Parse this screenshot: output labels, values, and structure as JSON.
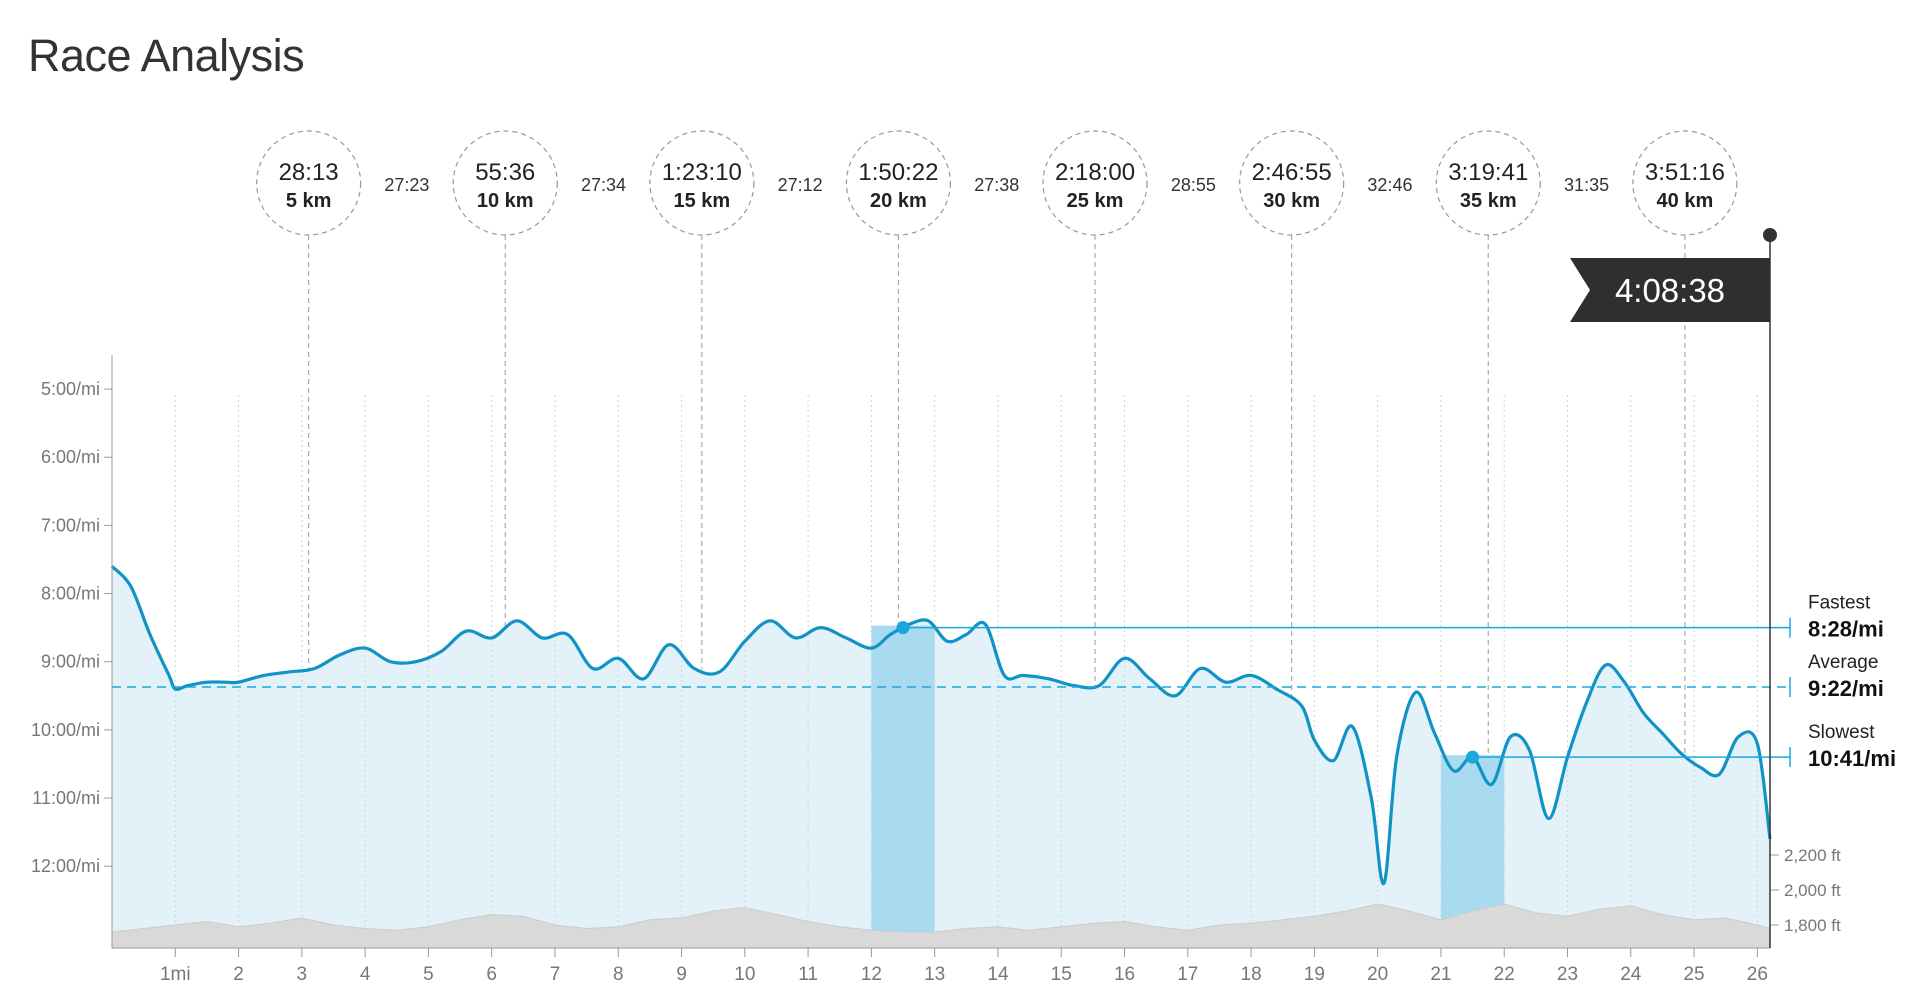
{
  "page": {
    "title": "Race Analysis"
  },
  "chart_data": {
    "type": "line",
    "x_unit": "mi",
    "x_range": [
      0,
      26.2
    ],
    "x_ticks": [
      "1mi",
      "2",
      "3",
      "4",
      "5",
      "6",
      "7",
      "8",
      "9",
      "10",
      "11",
      "12",
      "13",
      "14",
      "15",
      "16",
      "17",
      "18",
      "19",
      "20",
      "21",
      "22",
      "23",
      "24",
      "25",
      "26"
    ],
    "y_range_min_per_mi": [
      4.5,
      13.2
    ],
    "y_ticks": [
      {
        "label": "5:00/mi",
        "value": 5
      },
      {
        "label": "6:00/mi",
        "value": 6
      },
      {
        "label": "7:00/mi",
        "value": 7
      },
      {
        "label": "8:00/mi",
        "value": 8
      },
      {
        "label": "9:00/mi",
        "value": 9
      },
      {
        "label": "10:00/mi",
        "value": 10
      },
      {
        "label": "11:00/mi",
        "value": 11
      },
      {
        "label": "12:00/mi",
        "value": 12
      }
    ],
    "pace_series": {
      "x": [
        0,
        0.3,
        0.6,
        0.9,
        1.0,
        1.2,
        1.5,
        1.8,
        2.0,
        2.4,
        2.8,
        3.2,
        3.6,
        4.0,
        4.4,
        4.8,
        5.2,
        5.6,
        6.0,
        6.4,
        6.8,
        7.2,
        7.6,
        8.0,
        8.4,
        8.8,
        9.2,
        9.6,
        10.0,
        10.4,
        10.8,
        11.2,
        11.6,
        12.0,
        12.3,
        12.6,
        12.9,
        13.2,
        13.5,
        13.8,
        14.1,
        14.4,
        14.8,
        15.2,
        15.6,
        16.0,
        16.4,
        16.8,
        17.2,
        17.6,
        18.0,
        18.4,
        18.8,
        19.0,
        19.3,
        19.6,
        19.9,
        20.1,
        20.3,
        20.6,
        20.9,
        21.2,
        21.5,
        21.8,
        22.1,
        22.4,
        22.7,
        23.0,
        23.3,
        23.6,
        23.9,
        24.2,
        24.5,
        24.8,
        25.1,
        25.4,
        25.7,
        26.0,
        26.2
      ],
      "y": [
        7.6,
        7.9,
        8.6,
        9.2,
        9.4,
        9.35,
        9.3,
        9.3,
        9.3,
        9.2,
        9.15,
        9.1,
        8.9,
        8.8,
        9.0,
        9.0,
        8.85,
        8.55,
        8.65,
        8.4,
        8.65,
        8.6,
        9.1,
        8.95,
        9.25,
        8.75,
        9.1,
        9.15,
        8.7,
        8.4,
        8.65,
        8.5,
        8.65,
        8.8,
        8.6,
        8.45,
        8.4,
        8.7,
        8.6,
        8.45,
        9.2,
        9.2,
        9.25,
        9.35,
        9.35,
        8.95,
        9.25,
        9.5,
        9.1,
        9.3,
        9.2,
        9.4,
        9.65,
        10.15,
        10.45,
        9.95,
        11.0,
        12.25,
        10.4,
        9.45,
        10.05,
        10.6,
        10.4,
        10.8,
        10.1,
        10.3,
        11.3,
        10.4,
        9.6,
        9.05,
        9.3,
        9.75,
        10.05,
        10.35,
        10.55,
        10.65,
        10.1,
        10.2,
        11.6
      ]
    },
    "split_markers": [
      {
        "time": "28:13",
        "distance": "5 km",
        "mile": 3.107
      },
      {
        "time": "55:36",
        "distance": "10 km",
        "mile": 6.214
      },
      {
        "time": "1:23:10",
        "distance": "15 km",
        "mile": 9.321
      },
      {
        "time": "1:50:22",
        "distance": "20 km",
        "mile": 12.427
      },
      {
        "time": "2:18:00",
        "distance": "25 km",
        "mile": 15.534
      },
      {
        "time": "2:46:55",
        "distance": "30 km",
        "mile": 18.641
      },
      {
        "time": "3:19:41",
        "distance": "35 km",
        "mile": 21.748
      },
      {
        "time": "3:51:16",
        "distance": "40 km",
        "mile": 24.855
      }
    ],
    "split_durations": [
      "27:23",
      "27:34",
      "27:12",
      "27:38",
      "28:55",
      "32:46",
      "31:35"
    ],
    "finish_time": "4:08:38",
    "summary": {
      "fastest": {
        "label": "Fastest",
        "pace": "8:28/mi",
        "value": 8.47,
        "mile_range": [
          12,
          13
        ],
        "marker_mile": 12.5
      },
      "average": {
        "label": "Average",
        "pace": "9:22/mi",
        "value": 9.37
      },
      "slowest": {
        "label": "Slowest",
        "pace": "10:41/mi",
        "value": 10.68,
        "mile_range": [
          21,
          22
        ],
        "marker_mile": 21.5
      }
    },
    "elevation": {
      "unit": "ft",
      "ticks": [
        {
          "label": "2,200 ft",
          "value": 2200
        },
        {
          "label": "2,000 ft",
          "value": 2000
        },
        {
          "label": "1,800 ft",
          "value": 1800
        }
      ],
      "x": [
        0,
        0.5,
        1.0,
        1.5,
        2.0,
        2.5,
        3.0,
        3.5,
        4.0,
        4.5,
        5.0,
        5.5,
        6.0,
        6.5,
        7.0,
        7.5,
        8.0,
        8.5,
        9.0,
        9.5,
        10.0,
        10.5,
        11.0,
        11.5,
        12.0,
        12.5,
        13.0,
        13.5,
        14.0,
        14.5,
        15.0,
        15.5,
        16.0,
        16.5,
        17.0,
        17.5,
        18.0,
        18.5,
        19.0,
        19.5,
        20.0,
        20.5,
        21.0,
        21.5,
        22.0,
        22.5,
        23.0,
        23.5,
        24.0,
        24.5,
        25.0,
        25.5,
        26.0,
        26.2
      ],
      "y": [
        1760,
        1780,
        1800,
        1820,
        1790,
        1810,
        1840,
        1800,
        1780,
        1770,
        1790,
        1830,
        1860,
        1850,
        1800,
        1780,
        1790,
        1830,
        1840,
        1880,
        1900,
        1860,
        1820,
        1790,
        1770,
        1760,
        1760,
        1780,
        1790,
        1770,
        1790,
        1810,
        1820,
        1790,
        1770,
        1800,
        1810,
        1830,
        1850,
        1880,
        1920,
        1880,
        1830,
        1880,
        1920,
        1870,
        1850,
        1890,
        1910,
        1860,
        1830,
        1840,
        1800,
        1780
      ]
    },
    "colors": {
      "line": "#1193c6",
      "area": "#e3f1f9",
      "highlight": "#a9dbf0",
      "marker": "#1aa7e0",
      "flag": "#2f2f2f",
      "elevation": "#d9d9d9",
      "axis_text": "#777777"
    }
  }
}
